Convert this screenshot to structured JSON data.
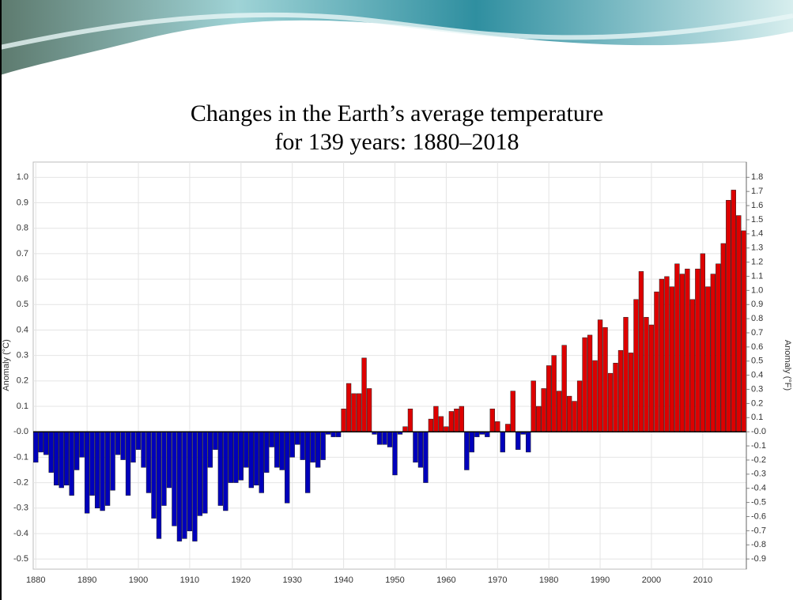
{
  "chart_data": {
    "type": "bar",
    "title": [
      "Changes in the Earth’s average temperature",
      "for 139 years: 1880–2018"
    ],
    "ylabel": "Anomaly (°C)",
    "y2label": "Anomaly (°F)",
    "positive_color": "#dd0000",
    "negative_color": "#0000bb",
    "grid": true,
    "x": [
      1880,
      1881,
      1882,
      1883,
      1884,
      1885,
      1886,
      1887,
      1888,
      1889,
      1890,
      1891,
      1892,
      1893,
      1894,
      1895,
      1896,
      1897,
      1898,
      1899,
      1900,
      1901,
      1902,
      1903,
      1904,
      1905,
      1906,
      1907,
      1908,
      1909,
      1910,
      1911,
      1912,
      1913,
      1914,
      1915,
      1916,
      1917,
      1918,
      1919,
      1920,
      1921,
      1922,
      1923,
      1924,
      1925,
      1926,
      1927,
      1928,
      1929,
      1930,
      1931,
      1932,
      1933,
      1934,
      1935,
      1936,
      1937,
      1938,
      1939,
      1940,
      1941,
      1942,
      1943,
      1944,
      1945,
      1946,
      1947,
      1948,
      1949,
      1950,
      1951,
      1952,
      1953,
      1954,
      1955,
      1956,
      1957,
      1958,
      1959,
      1960,
      1961,
      1962,
      1963,
      1964,
      1965,
      1966,
      1967,
      1968,
      1969,
      1970,
      1971,
      1972,
      1973,
      1974,
      1975,
      1976,
      1977,
      1978,
      1979,
      1980,
      1981,
      1982,
      1983,
      1984,
      1985,
      1986,
      1987,
      1988,
      1989,
      1990,
      1991,
      1992,
      1993,
      1994,
      1995,
      1996,
      1997,
      1998,
      1999,
      2000,
      2001,
      2002,
      2003,
      2004,
      2005,
      2006,
      2007,
      2008,
      2009,
      2010,
      2011,
      2012,
      2013,
      2014,
      2015,
      2016,
      2017,
      2018
    ],
    "values": [
      -0.12,
      -0.08,
      -0.09,
      -0.16,
      -0.21,
      -0.22,
      -0.21,
      -0.25,
      -0.15,
      -0.1,
      -0.32,
      -0.25,
      -0.3,
      -0.31,
      -0.29,
      -0.23,
      -0.09,
      -0.11,
      -0.25,
      -0.12,
      -0.07,
      -0.14,
      -0.24,
      -0.34,
      -0.42,
      -0.29,
      -0.22,
      -0.37,
      -0.43,
      -0.42,
      -0.39,
      -0.43,
      -0.33,
      -0.32,
      -0.14,
      -0.07,
      -0.29,
      -0.31,
      -0.2,
      -0.2,
      -0.19,
      -0.14,
      -0.22,
      -0.21,
      -0.24,
      -0.16,
      -0.06,
      -0.14,
      -0.15,
      -0.28,
      -0.1,
      -0.05,
      -0.11,
      -0.24,
      -0.12,
      -0.14,
      -0.11,
      -0.01,
      -0.02,
      -0.02,
      0.09,
      0.19,
      0.15,
      0.15,
      0.29,
      0.17,
      -0.01,
      -0.05,
      -0.05,
      -0.06,
      -0.17,
      -0.01,
      0.02,
      0.09,
      -0.12,
      -0.14,
      -0.2,
      0.05,
      0.1,
      0.06,
      0.02,
      0.08,
      0.09,
      0.1,
      -0.15,
      -0.08,
      -0.02,
      -0.01,
      -0.02,
      0.09,
      0.04,
      -0.08,
      0.03,
      0.16,
      -0.07,
      -0.01,
      -0.08,
      0.2,
      0.1,
      0.17,
      0.26,
      0.3,
      0.16,
      0.34,
      0.14,
      0.12,
      0.2,
      0.37,
      0.38,
      0.28,
      0.44,
      0.41,
      0.23,
      0.27,
      0.32,
      0.45,
      0.31,
      0.52,
      0.63,
      0.45,
      0.42,
      0.55,
      0.6,
      0.61,
      0.57,
      0.66,
      0.62,
      0.64,
      0.52,
      0.64,
      0.7,
      0.57,
      0.62,
      0.66,
      0.74,
      0.91,
      0.95,
      0.85,
      0.79
    ],
    "xlim": [
      1879.5,
      2018.5
    ],
    "xticks": [
      1880,
      1890,
      1900,
      1910,
      1920,
      1930,
      1940,
      1950,
      1960,
      1970,
      1980,
      1990,
      2000,
      2010
    ],
    "ylim": [
      -0.54,
      1.06
    ],
    "yticks": [
      {
        "value": 1,
        "label": "1.0"
      },
      0.9,
      0.8,
      0.7,
      0.6,
      0.5,
      0.4,
      0.3,
      0.2,
      0.1,
      {
        "value": 0,
        "label": "-0.0"
      },
      -0.1,
      -0.2,
      -0.3,
      -0.4,
      -0.5
    ],
    "y2lim": [
      -0.972,
      1.908
    ],
    "y2ticks": [
      1.8,
      1.7,
      1.6,
      1.5,
      1.4,
      1.3,
      1.2,
      1.1,
      {
        "value": 1,
        "label": "1.0"
      },
      0.9,
      0.8,
      0.7,
      0.6,
      0.5,
      0.4,
      0.3,
      0.2,
      0.1,
      {
        "value": 0,
        "label": "-0.0"
      },
      -0.1,
      -0.2,
      -0.3,
      -0.4,
      -0.5,
      -0.6,
      -0.7,
      -0.8,
      -0.9
    ]
  }
}
